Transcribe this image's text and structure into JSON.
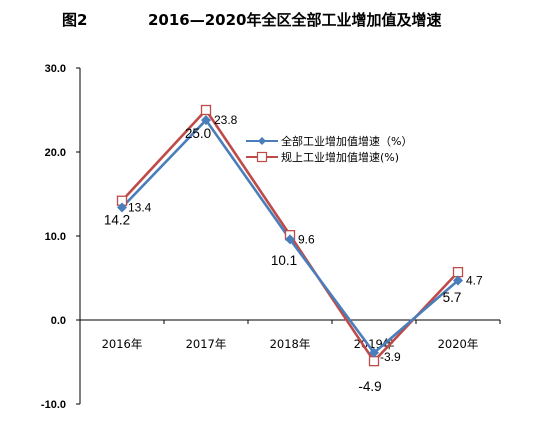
{
  "figure_label": "图2",
  "title": "2016—2020年全区全部工业增加值及增速",
  "colors": {
    "series1": "#4a7ebb",
    "series2": "#be4b48",
    "axis": "#000000",
    "background": "#ffffff"
  },
  "chart_data": {
    "type": "line",
    "title": "2016—2020年全区全部工业增加值及增速",
    "xlabel": "",
    "ylabel": "",
    "categories": [
      "2016年",
      "2017年",
      "2018年",
      "2019年",
      "2020年"
    ],
    "ylim": [
      -10.0,
      30.0
    ],
    "yticks": [
      "-10.0",
      "0.0",
      "10.0",
      "20.0",
      "30.0"
    ],
    "yticks_values": [
      -10,
      0,
      10,
      20,
      30
    ],
    "grid": false,
    "legend_position": "top-right",
    "series": [
      {
        "name": "全部工业增加值增速（%）",
        "values": [
          13.4,
          23.8,
          9.6,
          -3.9,
          4.7
        ],
        "labels": [
          "13.4",
          "23.8",
          "9.6",
          "-3.9",
          "4.7"
        ],
        "color": "#4a7ebb",
        "marker": "diamond"
      },
      {
        "name": "规上工业增加值增速(%)",
        "values": [
          14.2,
          25.0,
          10.1,
          -4.9,
          5.7
        ],
        "labels": [
          "14.2",
          "25.0",
          "10.1",
          "-4.9",
          "5.7"
        ],
        "color": "#be4b48",
        "marker": "square-open"
      }
    ]
  }
}
